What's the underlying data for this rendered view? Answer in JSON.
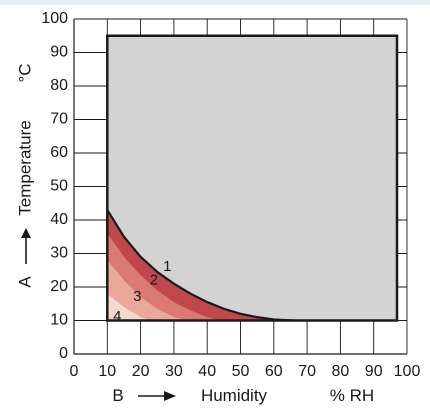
{
  "chart_data": {
    "type": "area",
    "title": "",
    "x_axis": {
      "letter": "B",
      "label": "Humidity",
      "unit": "% RH",
      "range": [
        0,
        100
      ],
      "ticks": [
        0,
        10,
        20,
        30,
        40,
        50,
        60,
        70,
        80,
        90,
        100
      ]
    },
    "y_axis": {
      "letter": "A",
      "label": "Temperature",
      "unit": "°C",
      "range": [
        0,
        100
      ],
      "ticks": [
        0,
        10,
        20,
        30,
        40,
        50,
        60,
        70,
        80,
        90,
        100
      ]
    },
    "grid": true,
    "operating_region": {
      "x_range": [
        10,
        97
      ],
      "y_range": [
        10,
        95
      ],
      "color": "#d3d3d3"
    },
    "zones": [
      {
        "label": "1",
        "color": "#c0474b",
        "boundary": [
          [
            10,
            43
          ],
          [
            15,
            35
          ],
          [
            20,
            29
          ],
          [
            25,
            24.5
          ],
          [
            30,
            21
          ],
          [
            35,
            18
          ],
          [
            40,
            15.5
          ],
          [
            45,
            13.5
          ],
          [
            50,
            12
          ],
          [
            55,
            11
          ],
          [
            60,
            10.3
          ],
          [
            66,
            10
          ]
        ],
        "label_at": [
          28,
          26
        ]
      },
      {
        "label": "2",
        "color": "#d97a74",
        "boundary": [
          [
            10,
            36
          ],
          [
            15,
            29
          ],
          [
            20,
            23.5
          ],
          [
            25,
            19
          ],
          [
            30,
            15.5
          ],
          [
            35,
            13
          ],
          [
            40,
            11
          ],
          [
            44,
            10
          ]
        ],
        "label_at": [
          24,
          22
        ]
      },
      {
        "label": "3",
        "color": "#e8a89a",
        "boundary": [
          [
            10,
            28
          ],
          [
            15,
            22
          ],
          [
            20,
            17
          ],
          [
            25,
            13.5
          ],
          [
            30,
            11
          ],
          [
            34,
            10
          ]
        ],
        "label_at": [
          19,
          17
        ]
      },
      {
        "label": "4",
        "color": "#f6d8d0",
        "boundary": [
          [
            10,
            18
          ],
          [
            15,
            14
          ],
          [
            20,
            11
          ],
          [
            23,
            10
          ]
        ],
        "label_at": [
          13,
          11
        ]
      }
    ],
    "curve_color": "#1a1a1a",
    "top_band_color": "#e6ecf4"
  }
}
